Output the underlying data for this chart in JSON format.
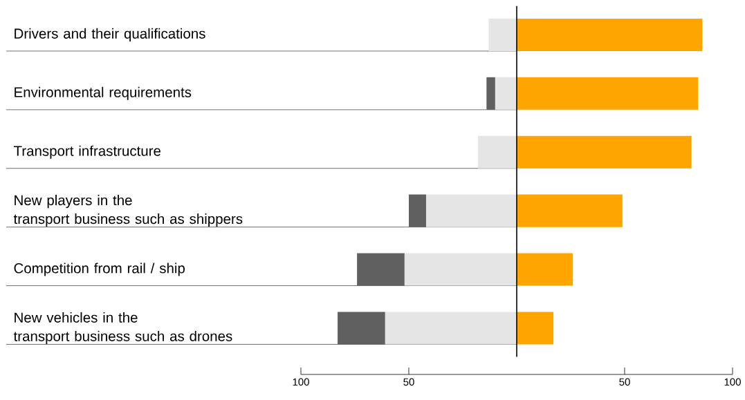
{
  "chart_data": {
    "type": "bar",
    "orientation": "horizontal",
    "stacked": true,
    "categories": [
      "Drivers and their qualifications",
      "Environmental requirements",
      "Transport infrastructure",
      "New players in the\ntransport business such as shippers",
      "Competition from rail / ship",
      "New vehicles in the\ntransport business such as drones"
    ],
    "series": [
      {
        "color": "#ffa500",
        "values": [
          86,
          84,
          81,
          49,
          26,
          17
        ]
      },
      {
        "color": "#e5e5e5",
        "values": [
          -13,
          -10,
          -18,
          -42,
          -52,
          -61
        ]
      },
      {
        "color": "#606060",
        "values": [
          null,
          -4,
          null,
          -8,
          -22,
          -22
        ]
      }
    ],
    "xlim": [
      -100,
      100
    ],
    "xticks": [
      {
        "value": -100,
        "label": "100"
      },
      {
        "value": -50,
        "label": "50"
      },
      {
        "value": 50,
        "label": "50"
      },
      {
        "value": 100,
        "label": "100"
      }
    ],
    "ref_lines": [
      {
        "axis": "x",
        "value": 0,
        "color": "#000000"
      }
    ]
  }
}
